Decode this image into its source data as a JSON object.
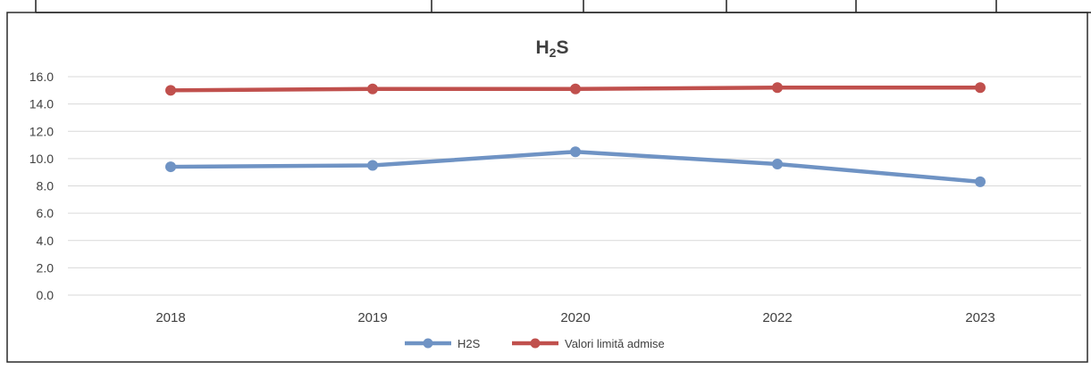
{
  "chart_data": {
    "type": "line",
    "title": "H2S",
    "title_main": "H",
    "title_sub": "2",
    "title_tail": "S",
    "categories": [
      "2018",
      "2019",
      "2020",
      "2022",
      "2023"
    ],
    "series": [
      {
        "name": "H2S",
        "color": "#6f93c4",
        "values": [
          9.4,
          9.5,
          10.5,
          9.6,
          8.3
        ]
      },
      {
        "name": "Valori limită admise",
        "color": "#c0504d",
        "values": [
          15.0,
          15.1,
          15.1,
          15.2,
          15.2
        ]
      }
    ],
    "y_ticks": [
      "0.0",
      "2.0",
      "4.0",
      "6.0",
      "8.0",
      "10.0",
      "12.0",
      "14.0",
      "16.0"
    ],
    "ylim": [
      0,
      16
    ],
    "grid": true,
    "legend_position": "bottom"
  }
}
